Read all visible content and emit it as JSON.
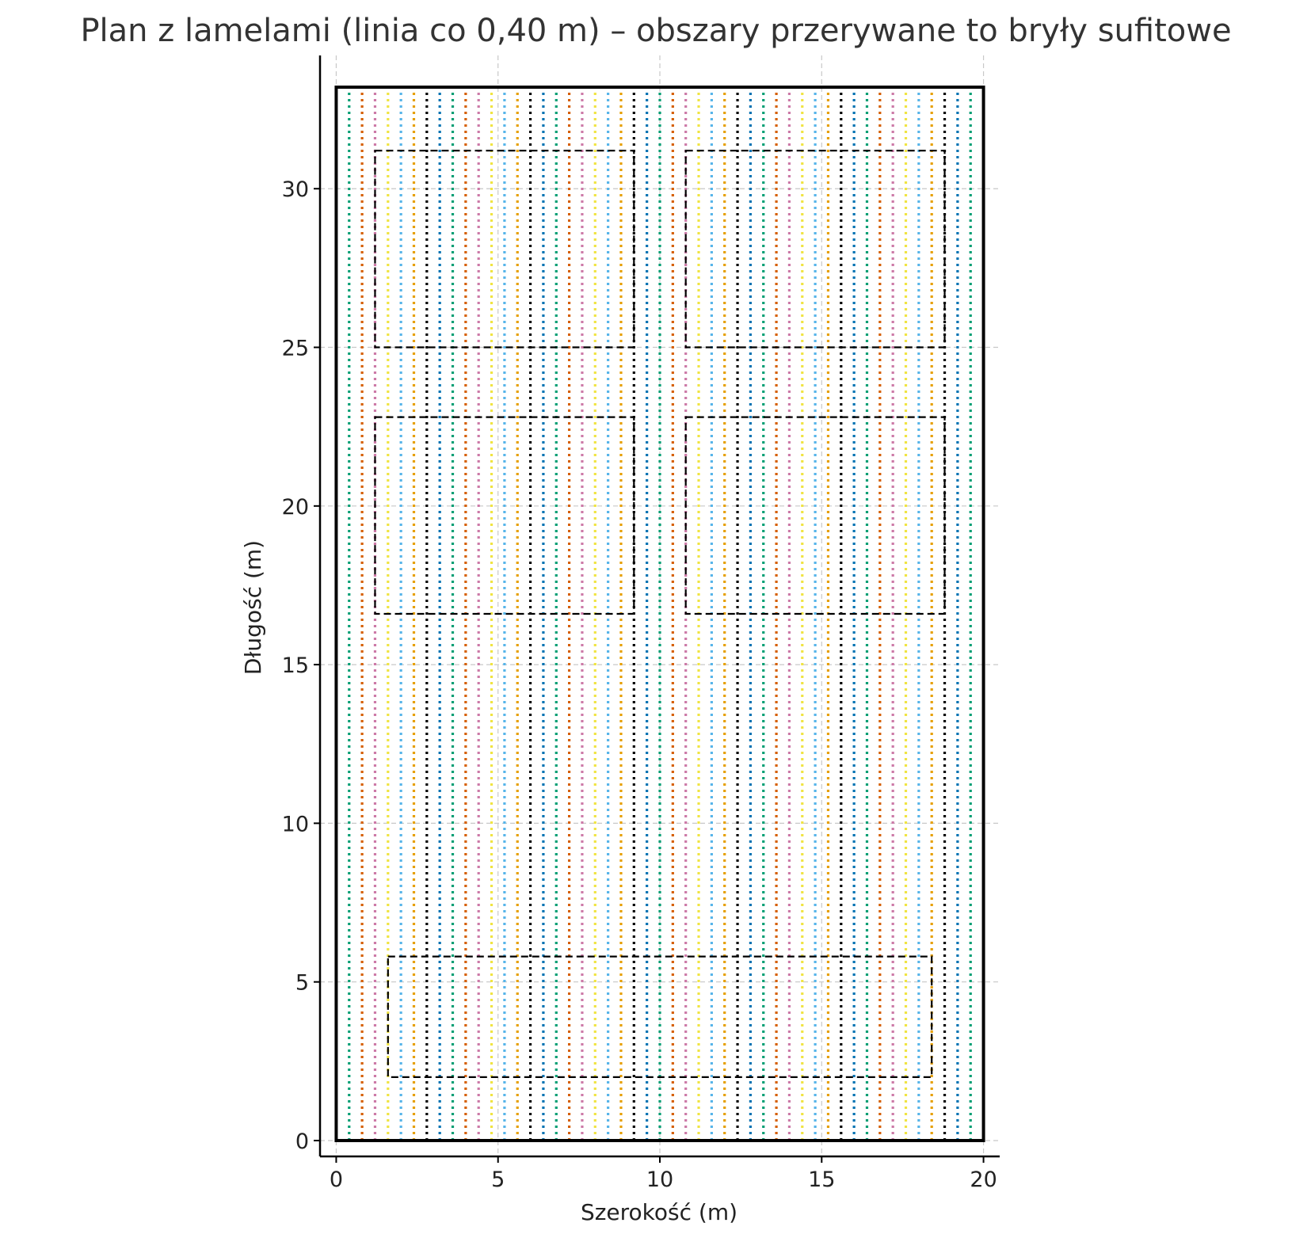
{
  "chart_data": {
    "type": "line",
    "title": "Plan z lamelami (linia co 0,40 m) – obszary przerywane to bryły sufitowe",
    "xlabel": "Szerokość (m)",
    "ylabel": "Długość (m)",
    "xlim": [
      -0.5,
      20.5
    ],
    "ylim": [
      -0.5,
      34.2
    ],
    "xticks": [
      0,
      5,
      10,
      15,
      20
    ],
    "yticks": [
      0,
      5,
      10,
      15,
      20,
      25,
      30
    ],
    "grid": true,
    "room_outline": {
      "x0": 0,
      "y0": 0,
      "x1": 20,
      "y1": 33.2
    },
    "lamella_lines": {
      "start": 0,
      "end": 20,
      "spacing": 0.4,
      "y0": 0,
      "y1": 33.2,
      "style": "dotted"
    },
    "series_colors": [
      "#0072B2",
      "#009E73",
      "#D55E00",
      "#CC79A7",
      "#F0E442",
      "#56B4E9",
      "#E69F00",
      "#000000"
    ],
    "ceiling_volumes": [
      {
        "x0": 1.2,
        "y0": 25.0,
        "x1": 9.2,
        "y1": 31.2
      },
      {
        "x0": 10.8,
        "y0": 25.0,
        "x1": 18.8,
        "y1": 31.2
      },
      {
        "x0": 1.2,
        "y0": 16.6,
        "x1": 9.2,
        "y1": 22.8
      },
      {
        "x0": 10.8,
        "y0": 16.6,
        "x1": 18.8,
        "y1": 22.8
      },
      {
        "x0": 1.6,
        "y0": 2.0,
        "x1": 18.4,
        "y1": 5.8
      }
    ]
  }
}
